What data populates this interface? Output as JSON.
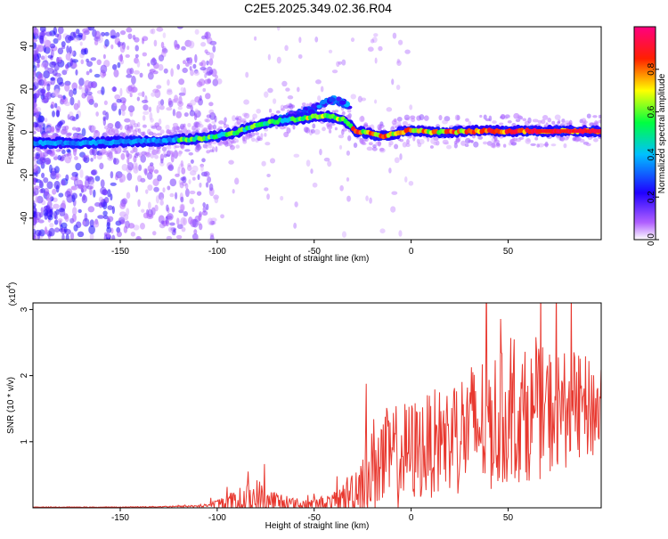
{
  "page_title": "C2E5.2025.349.02.36.R04",
  "chart_data": [
    {
      "type": "heatmap",
      "title": "C2E5.2025.349.02.36.R04",
      "xlabel": "Height of straight line (km)",
      "ylabel": "Frequency (Hz)",
      "xlim": [
        -195,
        98
      ],
      "ylim": [
        -50,
        49
      ],
      "x_ticks": [
        -150,
        -100,
        -50,
        0,
        50
      ],
      "y_ticks": [
        -40,
        -20,
        0,
        20,
        40
      ],
      "colorbar": {
        "label": "Normalized spectral amplitude",
        "range": [
          0.0,
          1.0
        ],
        "ticks": [
          "0.0",
          "0.2",
          "0.4",
          "0.6",
          "0.8"
        ],
        "tick_values": [
          0.0,
          0.2,
          0.4,
          0.6,
          0.8
        ],
        "colors": [
          "#ffffff",
          "#a040ff",
          "#3000ff",
          "#00c0ff",
          "#00ff40",
          "#ffff00",
          "#ff0000",
          "#ff0080"
        ]
      },
      "ridge_frequency": {
        "x": [
          -195,
          -170,
          -150,
          -130,
          -120,
          -110,
          -100,
          -90,
          -80,
          -70,
          -60,
          -50,
          -45,
          -40,
          -35,
          -30,
          -28,
          -25,
          -20,
          -15,
          -10,
          -5,
          0,
          10,
          20,
          30,
          50,
          70,
          98
        ],
        "y": [
          -5,
          -5,
          -4.5,
          -4,
          -3.5,
          -3,
          -2,
          0,
          3,
          5,
          6,
          7,
          7.5,
          7,
          6,
          2,
          0,
          0,
          -1,
          -2,
          -1,
          0,
          1,
          0,
          0,
          0.5,
          0.5,
          0.5,
          0.5
        ]
      },
      "secondary_branch": {
        "x": [
          -90,
          -75,
          -60,
          -50,
          -45,
          -40,
          -35,
          -32
        ],
        "y": [
          0,
          4,
          8,
          11,
          13,
          15,
          14,
          12
        ]
      }
    },
    {
      "type": "line",
      "xlabel": "Height of straight line (km)",
      "ylabel": "SNR (10 * v/v)",
      "y_multiplier": "(x10",
      "y_multiplier_exp": "4",
      "y_multiplier_close": ")",
      "xlim": [
        -195,
        98
      ],
      "ylim": [
        0,
        3.1
      ],
      "x_ticks": [
        -150,
        -100,
        -50,
        0,
        50
      ],
      "y_ticks": [
        1,
        2,
        3
      ],
      "line_color": "#e8382f",
      "series_envelope": {
        "x": [
          -195,
          -150,
          -120,
          -105,
          -100,
          -90,
          -80,
          -70,
          -60,
          -50,
          -40,
          -35,
          -30,
          -25,
          -20,
          -15,
          -10,
          0,
          10,
          20,
          30,
          40,
          50,
          60,
          70,
          80,
          90,
          98
        ],
        "base": [
          0.01,
          0.01,
          0.02,
          0.03,
          0.05,
          0.08,
          0.12,
          0.08,
          0.05,
          0.05,
          0.08,
          0.15,
          0.25,
          0.4,
          0.6,
          0.7,
          0.75,
          0.85,
          0.95,
          1.05,
          1.2,
          1.3,
          1.35,
          1.4,
          1.45,
          1.5,
          1.5,
          1.5
        ],
        "amplitude": [
          0.005,
          0.005,
          0.01,
          0.03,
          0.1,
          0.2,
          0.35,
          0.2,
          0.1,
          0.1,
          0.15,
          0.25,
          0.4,
          0.6,
          0.8,
          0.8,
          0.8,
          0.8,
          0.8,
          0.9,
          1.0,
          1.1,
          1.0,
          1.0,
          1.0,
          0.9,
          0.8,
          0.8
        ]
      }
    }
  ]
}
